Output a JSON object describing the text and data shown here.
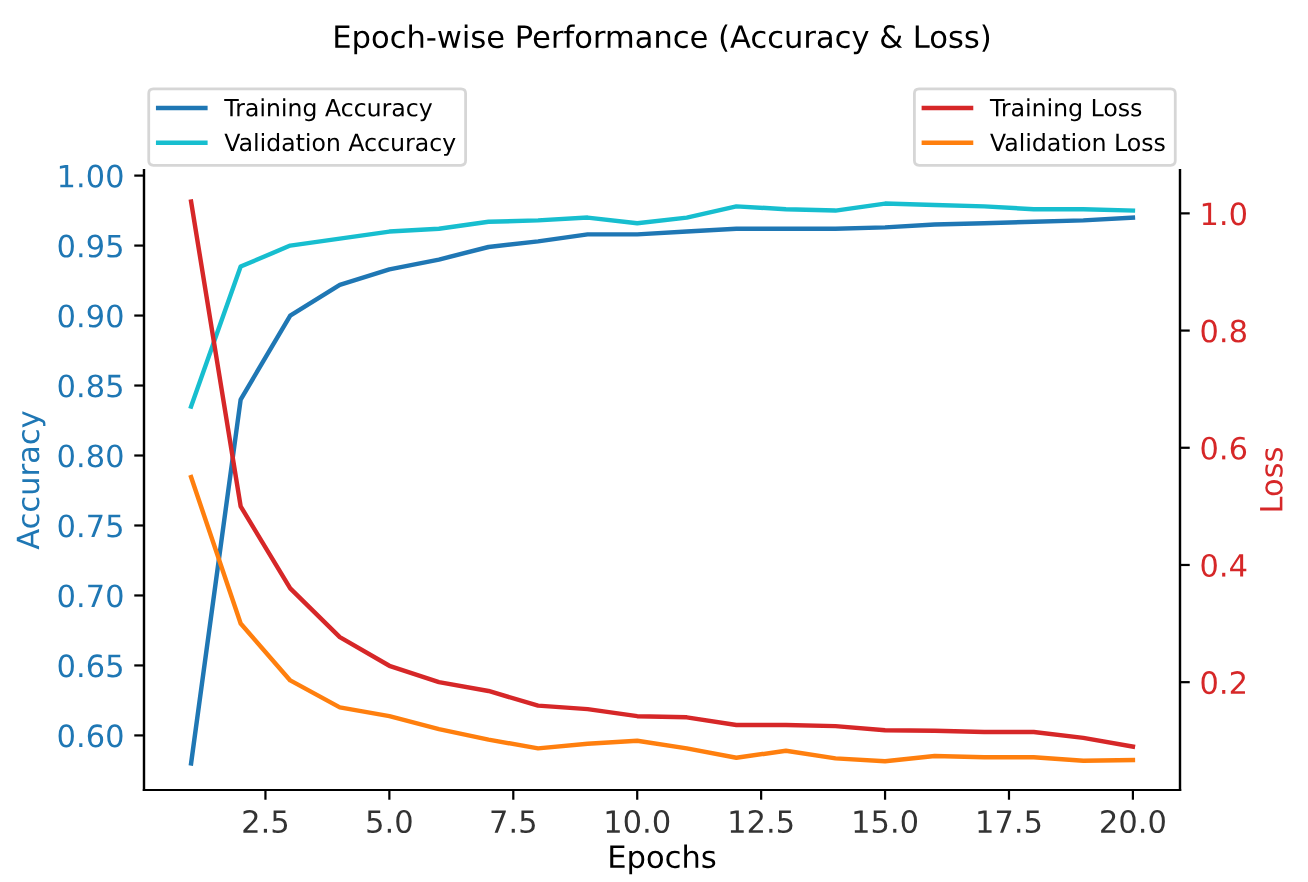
{
  "chart_data": {
    "type": "line",
    "title": "Epoch-wise Performance (Accuracy & Loss)",
    "xlabel": "Epochs",
    "ylabel": "Accuracy",
    "y2label": "Loss",
    "x": [
      1,
      2,
      3,
      4,
      5,
      6,
      7,
      8,
      9,
      10,
      11,
      12,
      13,
      14,
      15,
      16,
      17,
      18,
      19,
      20
    ],
    "series": [
      {
        "name": "Training Accuracy",
        "color": "#1f77b4",
        "axis": "y",
        "values": [
          0.58,
          0.84,
          0.9,
          0.922,
          0.933,
          0.94,
          0.949,
          0.953,
          0.958,
          0.958,
          0.96,
          0.962,
          0.962,
          0.962,
          0.963,
          0.965,
          0.966,
          0.967,
          0.968,
          0.97
        ]
      },
      {
        "name": "Validation Accuracy",
        "color": "#17becf",
        "axis": "y",
        "values": [
          0.835,
          0.935,
          0.95,
          0.955,
          0.96,
          0.962,
          0.967,
          0.968,
          0.97,
          0.966,
          0.97,
          0.978,
          0.976,
          0.975,
          0.98,
          0.979,
          0.978,
          0.976,
          0.976,
          0.975
        ]
      },
      {
        "name": "Training Loss",
        "color": "#d62728",
        "axis": "y2",
        "values": [
          1.02,
          0.5,
          0.36,
          0.277,
          0.228,
          0.2,
          0.185,
          0.16,
          0.154,
          0.142,
          0.14,
          0.127,
          0.127,
          0.125,
          0.118,
          0.117,
          0.115,
          0.115,
          0.105,
          0.09
        ]
      },
      {
        "name": "Validation Loss",
        "color": "#ff7f0e",
        "axis": "y2",
        "values": [
          0.55,
          0.3,
          0.203,
          0.157,
          0.142,
          0.12,
          0.102,
          0.087,
          0.095,
          0.1,
          0.087,
          0.071,
          0.083,
          0.07,
          0.065,
          0.074,
          0.072,
          0.072,
          0.066,
          0.067
        ]
      }
    ],
    "xlim": [
      0.05,
      20.95
    ],
    "xticks": [
      2.5,
      {
        "value": 5,
        "label": "5.0"
      },
      7.5,
      {
        "value": 10,
        "label": "10.0"
      },
      12.5,
      {
        "value": 15,
        "label": "15.0"
      },
      17.5,
      {
        "value": 20,
        "label": "20.0"
      }
    ],
    "ylim": [
      0.561,
      1.004
    ],
    "yticks": [
      {
        "value": 0.6,
        "label": "0.60"
      },
      0.65,
      {
        "value": 0.7,
        "label": "0.70"
      },
      0.75,
      {
        "value": 0.8,
        "label": "0.80"
      },
      0.85,
      {
        "value": 0.9,
        "label": "0.90"
      },
      0.95,
      {
        "value": 1,
        "label": "1.00"
      }
    ],
    "y2lim": [
      0.016,
      1.074
    ],
    "y2ticks": [
      0.2,
      0.4,
      0.6,
      0.8,
      {
        "value": 1,
        "label": "1.0"
      }
    ],
    "legend": "top",
    "grid": false
  }
}
